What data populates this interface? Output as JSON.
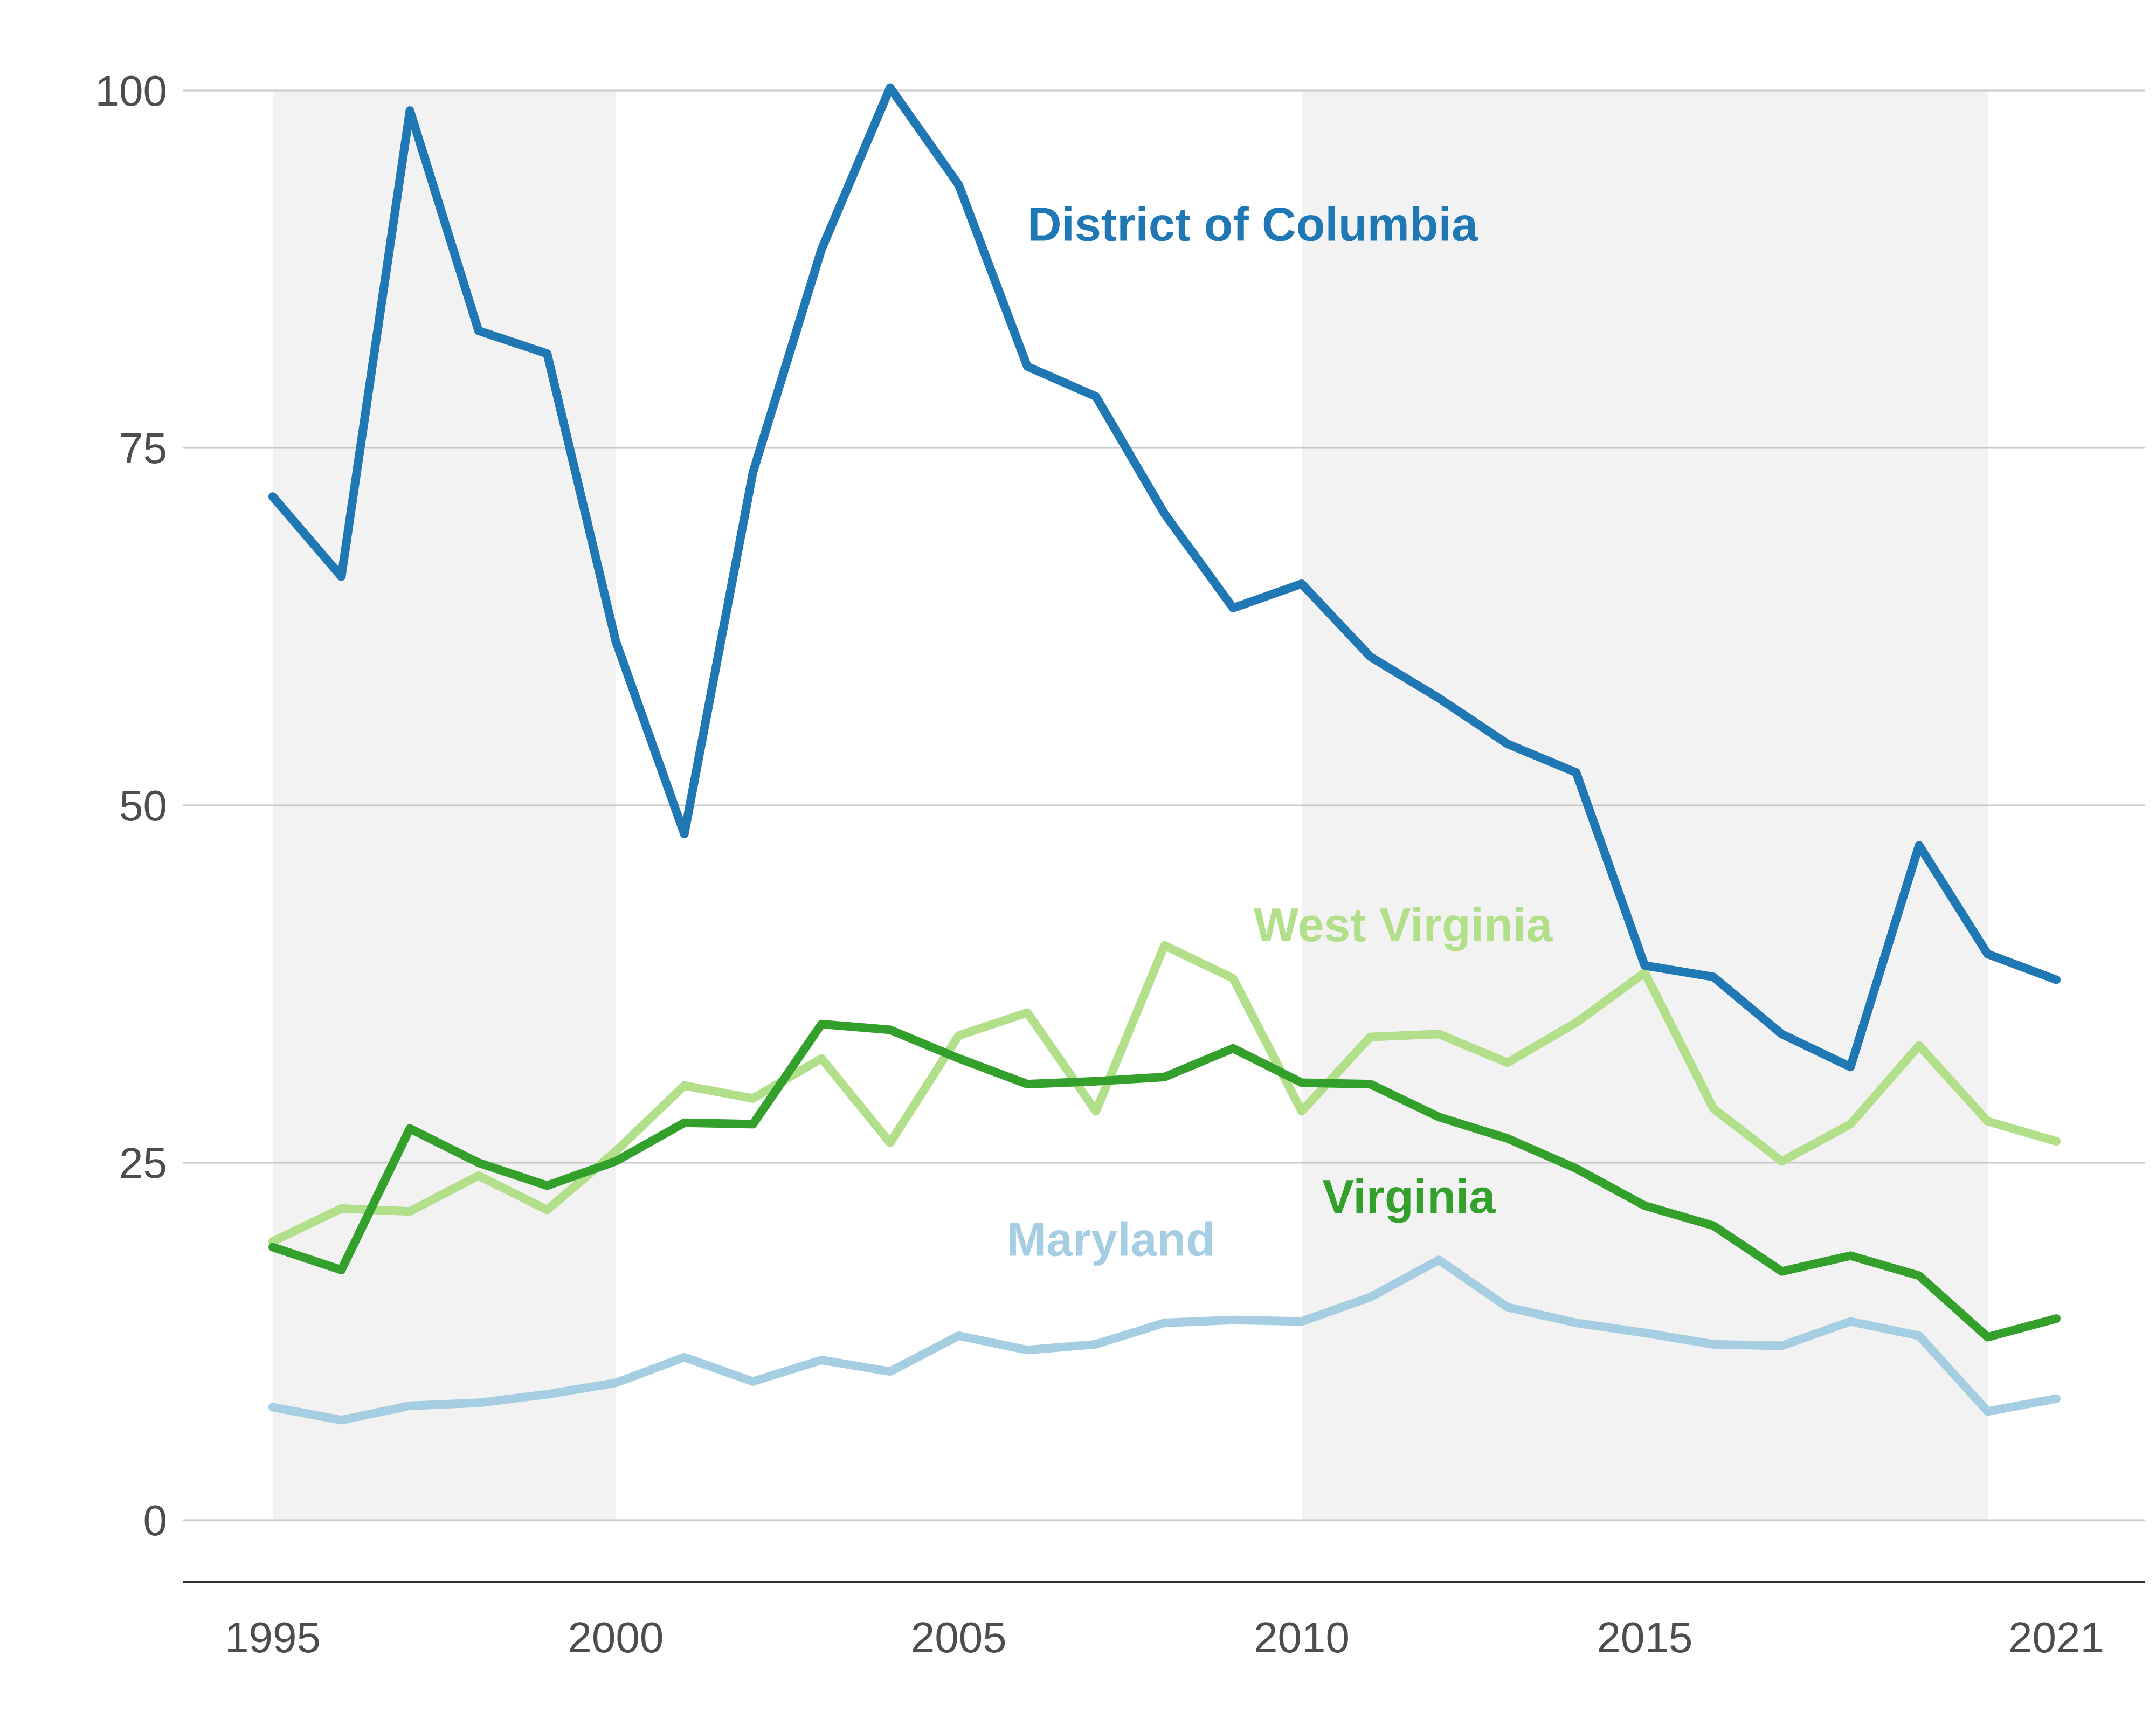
{
  "chart_data": {
    "type": "line",
    "title": "",
    "xlabel": "",
    "ylabel": "",
    "xlim": [
      1995,
      2021
    ],
    "ylim": [
      0,
      100
    ],
    "y_ticks": [
      0,
      25,
      50,
      75,
      100
    ],
    "x_ticks": [
      1995,
      2000,
      2005,
      2010,
      2015,
      2021
    ],
    "grid": "horizontal",
    "legend": "inline labels",
    "shaded_periods": [
      [
        1995,
        2000
      ],
      [
        2010,
        2020
      ]
    ],
    "x": [
      1995,
      1996,
      1997,
      1998,
      1999,
      2000,
      2001,
      2002,
      2003,
      2004,
      2005,
      2006,
      2007,
      2008,
      2009,
      2010,
      2011,
      2012,
      2013,
      2014,
      2015,
      2016,
      2017,
      2018,
      2019,
      2020,
      2021
    ],
    "series": [
      {
        "name": "District of Columbia",
        "color": "#1f78b4",
        "values": [
          71.6,
          66.0,
          98.6,
          83.2,
          81.6,
          61.5,
          48.0,
          73.3,
          88.9,
          100.2,
          93.4,
          80.7,
          78.6,
          70.4,
          63.8,
          65.5,
          60.4,
          57.5,
          54.3,
          52.3,
          38.8,
          38.0,
          34.0,
          31.7,
          47.2,
          39.6,
          37.8
        ]
      },
      {
        "name": "West Virginia",
        "color": "#b2df8a",
        "values": [
          19.5,
          21.8,
          21.6,
          24.1,
          21.7,
          25.8,
          30.4,
          29.5,
          32.3,
          26.4,
          33.9,
          35.5,
          28.6,
          40.2,
          37.9,
          28.6,
          33.8,
          34.0,
          32.0,
          34.8,
          38.3,
          28.8,
          25.1,
          27.7,
          33.2,
          27.9,
          26.5
        ]
      },
      {
        "name": "Virginia",
        "color": "#33a02c",
        "values": [
          19.1,
          17.5,
          27.4,
          25.0,
          23.4,
          25.1,
          27.8,
          27.7,
          34.7,
          34.3,
          32.3,
          30.5,
          30.7,
          31.0,
          33.0,
          30.6,
          30.5,
          28.2,
          26.7,
          24.6,
          22.0,
          20.6,
          17.4,
          18.5,
          17.1,
          12.8,
          14.1
        ]
      },
      {
        "name": "Maryland",
        "color": "#a6cee3",
        "values": [
          7.9,
          7.0,
          8.0,
          8.2,
          8.8,
          9.6,
          11.4,
          9.7,
          11.2,
          10.4,
          12.9,
          11.9,
          12.3,
          13.8,
          14.0,
          13.9,
          15.6,
          18.2,
          14.9,
          13.8,
          13.1,
          12.3,
          12.2,
          13.9,
          12.9,
          7.6,
          8.5
        ]
      }
    ],
    "labels": [
      {
        "text": "District of Columbia",
        "series": "District of Columbia",
        "x": 2006.0,
        "y": 89.5
      },
      {
        "text": "West Virginia",
        "series": "West Virginia",
        "x": 2009.3,
        "y": 40.5
      },
      {
        "text": "Virginia",
        "series": "Virginia",
        "x": 2010.3,
        "y": 21.5
      },
      {
        "text": "Maryland",
        "series": "Maryland",
        "x": 2005.7,
        "y": 18.5
      }
    ]
  }
}
